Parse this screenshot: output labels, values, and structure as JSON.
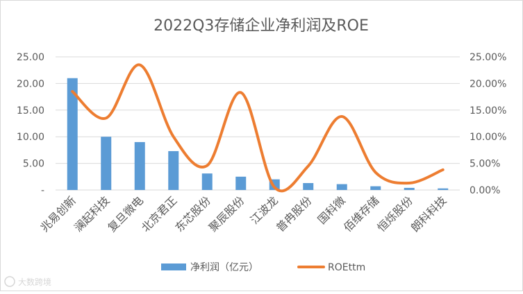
{
  "chart_data": {
    "type": "bar+line",
    "title": "2022Q3存储企业净利润及ROE",
    "categories": [
      "兆易创新",
      "澜起科技",
      "复旦微电",
      "北京君正",
      "东芯股份",
      "聚辰股份",
      "江波龙",
      "普冉股份",
      "国科微",
      "佰维存储",
      "恒烁股份",
      "朗科科技"
    ],
    "series": [
      {
        "name": "净利润（亿元）",
        "type": "bar",
        "axis": "left",
        "color": "#5b9bd5",
        "values": [
          21.0,
          10.0,
          9.0,
          7.3,
          3.1,
          2.5,
          2.0,
          1.3,
          1.1,
          0.7,
          0.4,
          0.3
        ]
      },
      {
        "name": "ROEttm",
        "type": "line",
        "axis": "right",
        "color": "#ed7d31",
        "values": [
          18.5,
          13.5,
          23.5,
          10.0,
          4.6,
          18.3,
          0.5,
          4.5,
          13.8,
          3.3,
          1.3,
          3.8
        ]
      }
    ],
    "left_axis": {
      "ylim": [
        0,
        25
      ],
      "ticks": [
        "-",
        "5.00",
        "10.00",
        "15.00",
        "20.00",
        "25.00"
      ]
    },
    "right_axis": {
      "ylim": [
        0,
        25
      ],
      "unit": "%",
      "ticks": [
        "0.00%",
        "5.00%",
        "10.00%",
        "15.00%",
        "20.00%",
        "25.00%"
      ]
    },
    "grid": true,
    "legend": "bottom"
  },
  "watermark": "大数跨境"
}
